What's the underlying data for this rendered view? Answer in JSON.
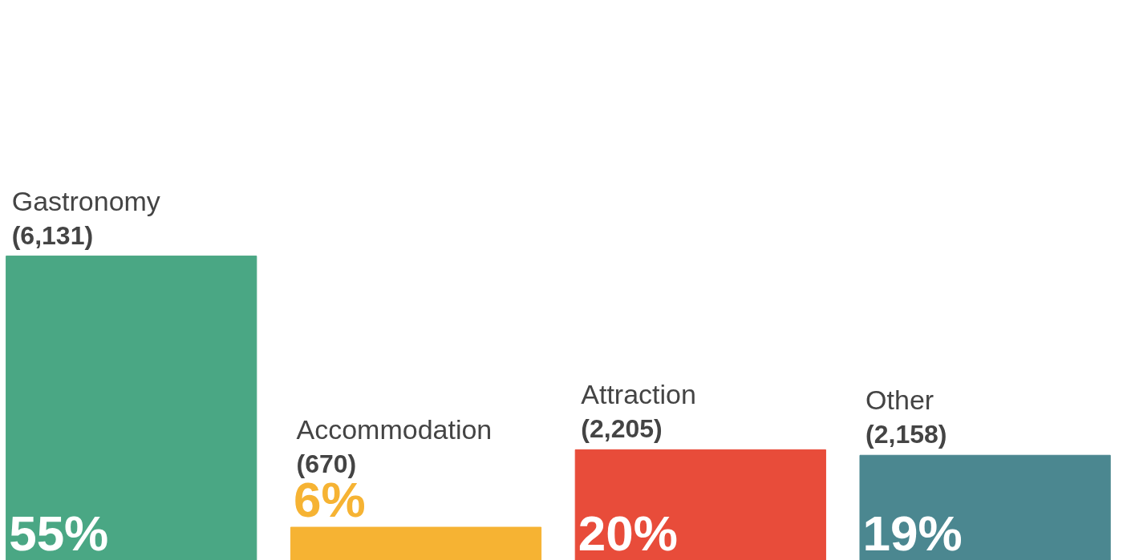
{
  "chart_data": {
    "type": "bar",
    "categories": [
      "Gastronomy",
      "Accommodation",
      "Attraction",
      "Other"
    ],
    "values": [
      55,
      6,
      20,
      19
    ],
    "colors": [
      "#4aa784",
      "#f6b333",
      "#e84c3a",
      "#4b8790"
    ],
    "value_labels": [
      "55%",
      "6%",
      "20%",
      "19%"
    ],
    "annotations": [
      {
        "text": "(6,131)",
        "x": "Gastronomy",
        "y": 55
      },
      {
        "text": "(670)",
        "x": "Accommodation",
        "y": 6
      },
      {
        "text": "(2,205)",
        "x": "Attraction",
        "y": 20
      },
      {
        "text": "(2,158)",
        "x": "Other",
        "y": 19
      }
    ],
    "grid": false
  }
}
